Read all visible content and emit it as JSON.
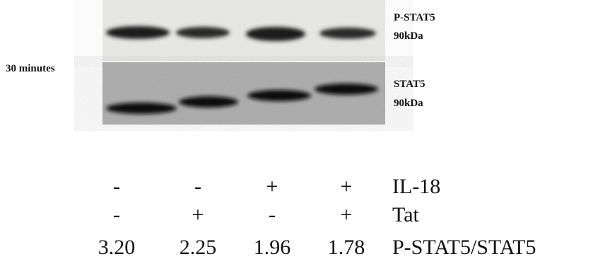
{
  "blot": {
    "condition": "30 minutes",
    "panels": [
      {
        "label": "P-STAT5",
        "size": "90kDa"
      },
      {
        "label": "STAT5",
        "size": "90kDa"
      }
    ]
  },
  "table": {
    "rows": [
      {
        "label": "IL-18",
        "cells": [
          "-",
          "-",
          "+",
          "+"
        ]
      },
      {
        "label": "Tat",
        "cells": [
          "-",
          "+",
          "-",
          "+"
        ]
      },
      {
        "label": "P-STAT5/STAT5",
        "cells": [
          "3.20",
          "2.25",
          "1.96",
          "1.78"
        ]
      }
    ]
  }
}
